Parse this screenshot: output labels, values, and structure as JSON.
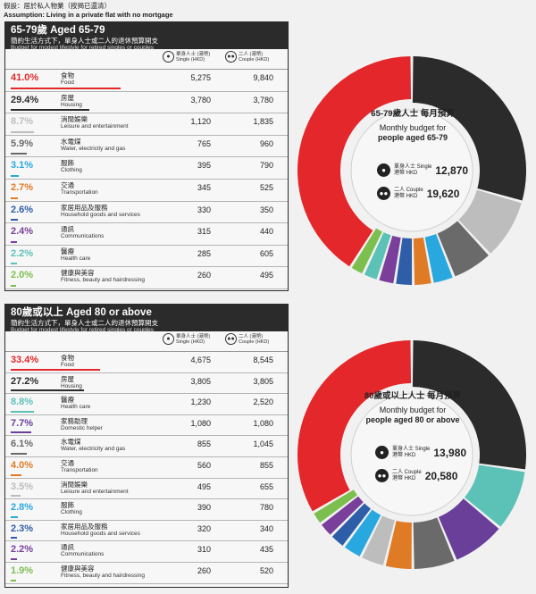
{
  "assumption": {
    "zh": "假設：居於私人物業（按揭已還清）",
    "en": "Assumption: Living in a private flat with no mortgage"
  },
  "headers": {
    "single": "單身人士 (港幣) Single (HKD)",
    "couple": "二人 (港幣) Couple (HKD)",
    "single_icon": "person-icon",
    "couple_icon": "couple-icon"
  },
  "chart_data": [
    {
      "type": "pie",
      "title": "65-79歲 Aged 65-79",
      "subtitle_zh": "簡約生活方式下，單身人士或二人的退休預算開支",
      "subtitle_en": "Budget for modest lifestyle for retired singles or couples",
      "center": {
        "zh": "65-79歲人士 每月預算",
        "en1": "Monthly budget for",
        "en2": "people aged 65-79",
        "single_label": "單身人士 Single",
        "single_value": "12,870",
        "couple_label": "二人 Couple",
        "couple_value": "19,620",
        "currency": "港幣 HKD"
      },
      "categories": [
        {
          "pct": "41.0%",
          "pct_value": 41.0,
          "zh": "食物",
          "en": "Food",
          "single": "5,275",
          "couple": "9,840",
          "color": "#e3272b"
        },
        {
          "pct": "29.4%",
          "pct_value": 29.4,
          "zh": "房屋",
          "en": "Housing",
          "single": "3,780",
          "couple": "3,780",
          "color": "#2b2b2b"
        },
        {
          "pct": "8.7%",
          "pct_value": 8.7,
          "zh": "消閒娛樂",
          "en": "Leisure and entertainment",
          "single": "1,120",
          "couple": "1,835",
          "color": "#bdbdbd"
        },
        {
          "pct": "5.9%",
          "pct_value": 5.9,
          "zh": "水電煤",
          "en": "Water, electricity and gas",
          "single": "765",
          "couple": "960",
          "color": "#6a6a6a"
        },
        {
          "pct": "3.1%",
          "pct_value": 3.1,
          "zh": "服飾",
          "en": "Clothing",
          "single": "395",
          "couple": "790",
          "color": "#29a8e0"
        },
        {
          "pct": "2.7%",
          "pct_value": 2.7,
          "zh": "交通",
          "en": "Transportation",
          "single": "345",
          "couple": "525",
          "color": "#e07b25"
        },
        {
          "pct": "2.6%",
          "pct_value": 2.6,
          "zh": "家居用品及服務",
          "en": "Household goods and services",
          "single": "330",
          "couple": "350",
          "color": "#2f5ea8"
        },
        {
          "pct": "2.4%",
          "pct_value": 2.4,
          "zh": "通訊",
          "en": "Communications",
          "single": "315",
          "couple": "440",
          "color": "#7a3f9a"
        },
        {
          "pct": "2.2%",
          "pct_value": 2.2,
          "zh": "醫療",
          "en": "Health care",
          "single": "285",
          "couple": "605",
          "color": "#5cc2b8"
        },
        {
          "pct": "2.0%",
          "pct_value": 2.0,
          "zh": "健康與美容",
          "en": "Fitness, beauty and hairdressing",
          "single": "260",
          "couple": "495",
          "color": "#7dbf4e"
        }
      ]
    },
    {
      "type": "pie",
      "title": "80歲或以上 Aged 80 or above",
      "subtitle_zh": "簡約生活方式下，單身人士或二人的退休預算開支",
      "subtitle_en": "Budget for modest lifestyle for retired singles or couples",
      "center": {
        "zh": "80歲或以上人士 每月預算",
        "en1": "Monthly budget for",
        "en2": "people aged 80 or above",
        "single_label": "單身人士 Single",
        "single_value": "13,980",
        "couple_label": "二人 Couple",
        "couple_value": "20,580",
        "currency": "港幣 HKD"
      },
      "categories": [
        {
          "pct": "33.4%",
          "pct_value": 33.4,
          "zh": "食物",
          "en": "Food",
          "single": "4,675",
          "couple": "8,545",
          "color": "#e3272b"
        },
        {
          "pct": "27.2%",
          "pct_value": 27.2,
          "zh": "房屋",
          "en": "Housing",
          "single": "3,805",
          "couple": "3,805",
          "color": "#2b2b2b"
        },
        {
          "pct": "8.8%",
          "pct_value": 8.8,
          "zh": "醫療",
          "en": "Health care",
          "single": "1,230",
          "couple": "2,520",
          "color": "#5cc2b8"
        },
        {
          "pct": "7.7%",
          "pct_value": 7.7,
          "zh": "家務助理",
          "en": "Domestic helper",
          "single": "1,080",
          "couple": "1,080",
          "color": "#6a3f9a"
        },
        {
          "pct": "6.1%",
          "pct_value": 6.1,
          "zh": "水電煤",
          "en": "Water, electricity and gas",
          "single": "855",
          "couple": "1,045",
          "color": "#6a6a6a"
        },
        {
          "pct": "4.0%",
          "pct_value": 4.0,
          "zh": "交通",
          "en": "Transportation",
          "single": "560",
          "couple": "855",
          "color": "#e07b25"
        },
        {
          "pct": "3.5%",
          "pct_value": 3.5,
          "zh": "消閒娛樂",
          "en": "Leisure and entertainment",
          "single": "495",
          "couple": "655",
          "color": "#bdbdbd"
        },
        {
          "pct": "2.8%",
          "pct_value": 2.8,
          "zh": "服飾",
          "en": "Clothing",
          "single": "390",
          "couple": "780",
          "color": "#29a8e0"
        },
        {
          "pct": "2.3%",
          "pct_value": 2.3,
          "zh": "家居用品及服務",
          "en": "Household goods and services",
          "single": "320",
          "couple": "340",
          "color": "#2f5ea8"
        },
        {
          "pct": "2.2%",
          "pct_value": 2.2,
          "zh": "通訊",
          "en": "Communications",
          "single": "310",
          "couple": "435",
          "color": "#7a3f9a"
        },
        {
          "pct": "1.9%",
          "pct_value": 1.9,
          "zh": "健康與美容",
          "en": "Fitness, beauty and hairdressing",
          "single": "260",
          "couple": "520",
          "color": "#7dbf4e"
        }
      ]
    }
  ]
}
